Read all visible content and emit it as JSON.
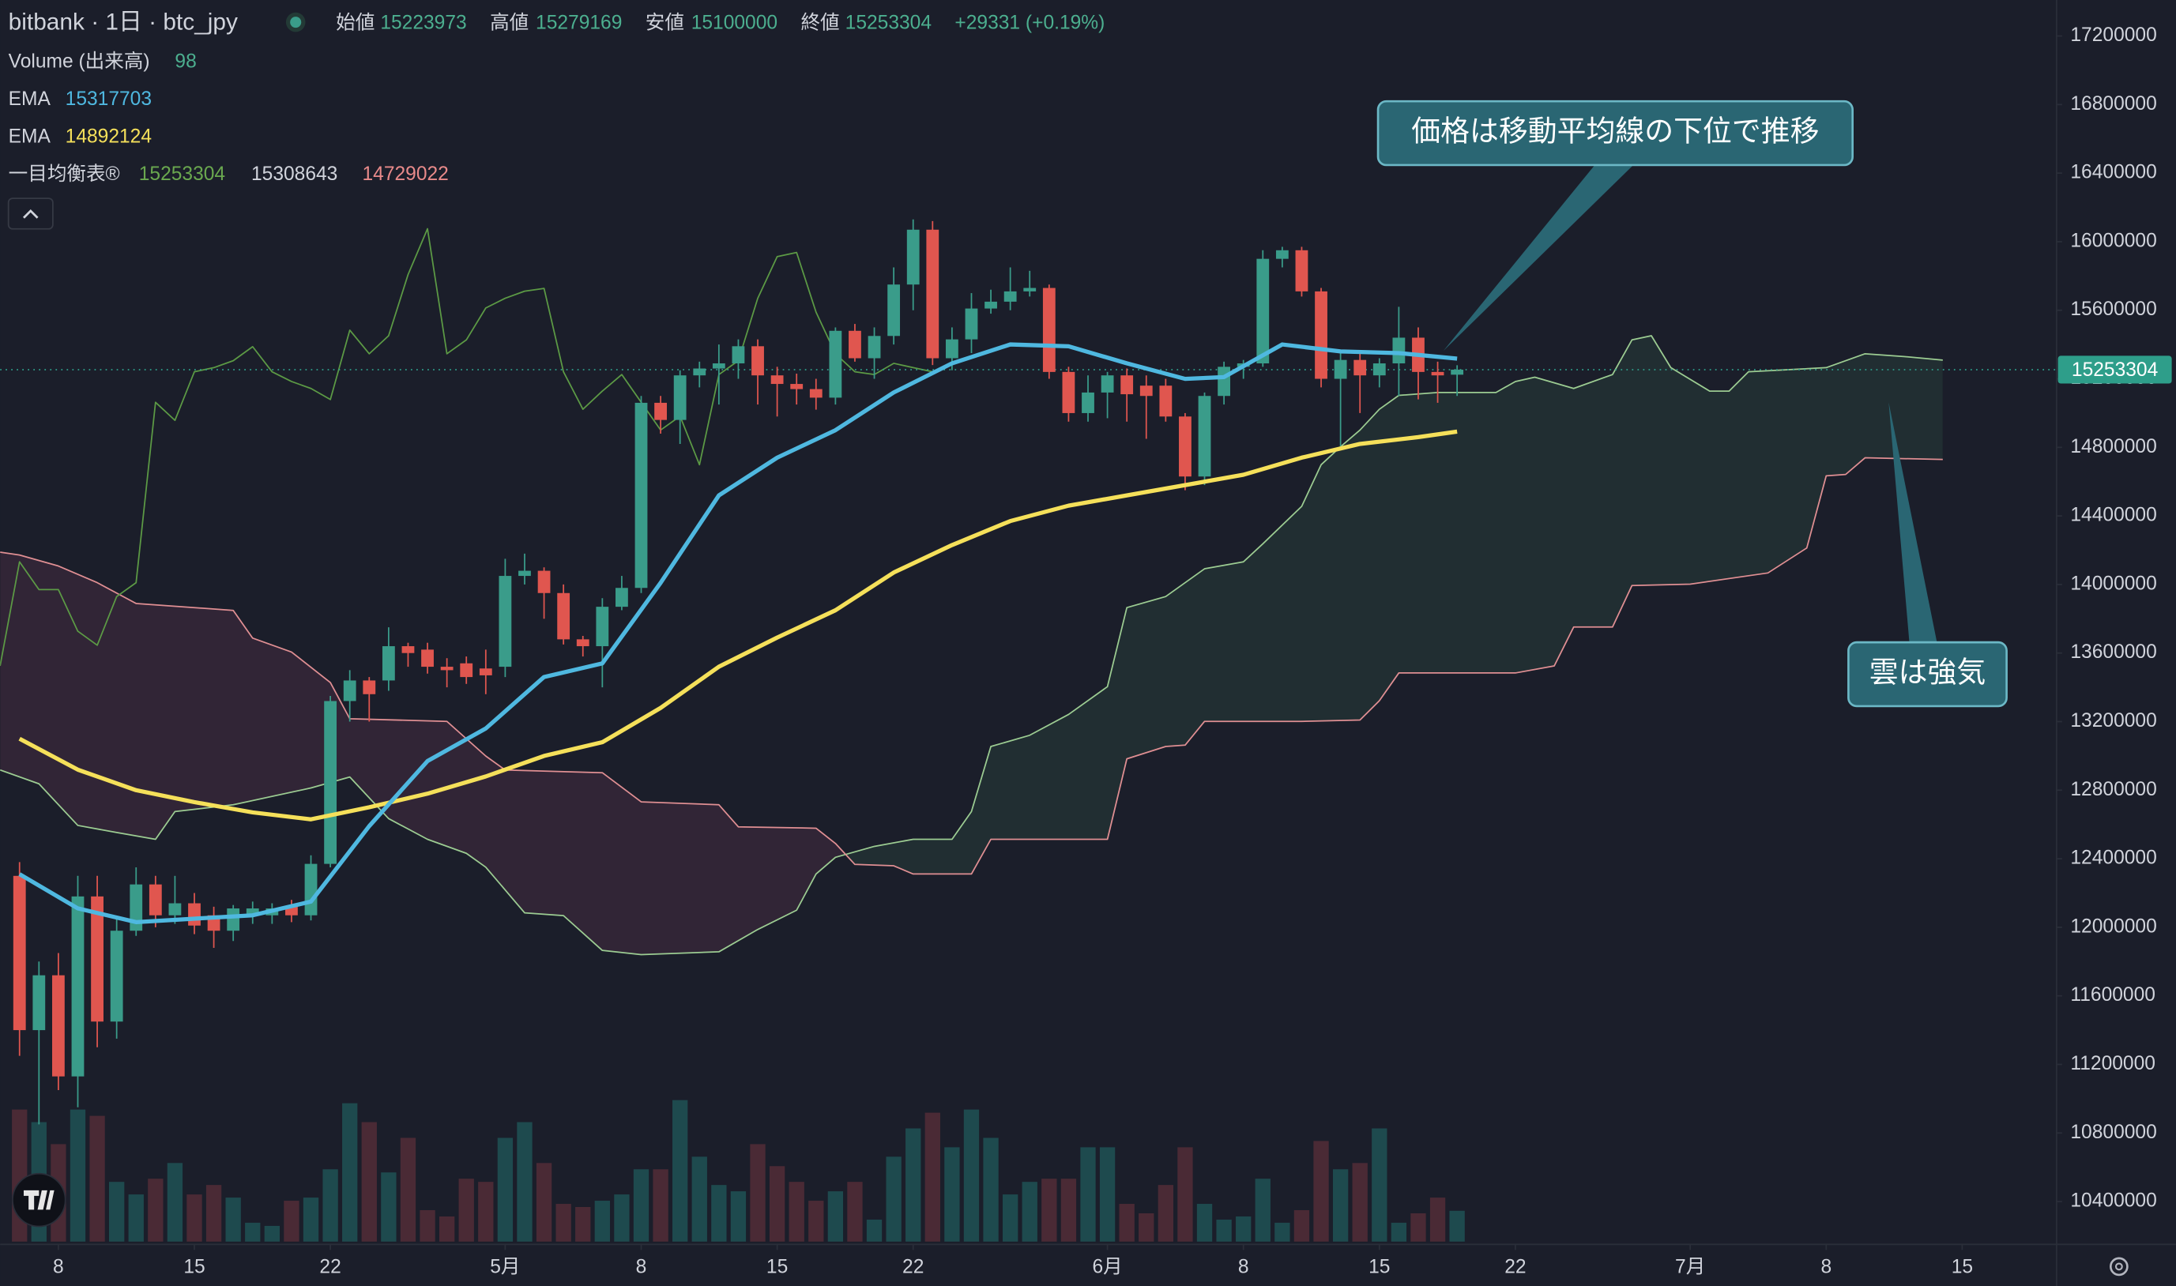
{
  "chart_data": {
    "type": "candlestick",
    "title": "bitbank · 1日 · btc_jpy",
    "ohlc": [
      {
        "label": "始値",
        "value": 15223973
      },
      {
        "label": "高値",
        "value": 15279169
      },
      {
        "label": "安値",
        "value": 15100000
      },
      {
        "label": "終値",
        "value": 15253304
      }
    ],
    "change": "+29331 (+0.19%)",
    "value_color": "#4caf8f",
    "indicators": [
      {
        "name": "Volume (出来高)",
        "value": 98,
        "color": "#4caf8f"
      },
      {
        "name": "EMA",
        "value": 15317703,
        "color": "#4fb8e0"
      },
      {
        "name": "EMA",
        "value": 14892124,
        "color": "#f5e05a"
      },
      {
        "name": "一目均衡表®",
        "values": [
          15253304,
          15308643,
          14729022
        ],
        "colors": [
          "#6aa84f",
          "#d1d4dc",
          "#e88a8a"
        ]
      }
    ],
    "up_color": "#3a9c8a",
    "down_color": "#e0564f",
    "volume_up_color": "#1e4a4e",
    "volume_down_color": "#4a2a35",
    "x": [
      "04-06",
      "04-07",
      "04-08",
      "04-09",
      "04-10",
      "04-11",
      "04-12",
      "04-13",
      "04-14",
      "04-15",
      "04-16",
      "04-17",
      "04-18",
      "04-19",
      "04-20",
      "04-21",
      "04-22",
      "04-23",
      "04-24",
      "04-25",
      "04-26",
      "04-27",
      "04-28",
      "04-29",
      "04-30",
      "05-01",
      "05-02",
      "05-03",
      "05-04",
      "05-05",
      "05-06",
      "05-07",
      "05-08",
      "05-09",
      "05-10",
      "05-11",
      "05-12",
      "05-13",
      "05-14",
      "05-15",
      "05-16",
      "05-17",
      "05-18",
      "05-19",
      "05-20",
      "05-21",
      "05-22",
      "05-23",
      "05-24",
      "05-25",
      "05-26",
      "05-27",
      "05-28",
      "05-29",
      "05-30",
      "05-31",
      "06-01",
      "06-02",
      "06-03",
      "06-04",
      "06-05",
      "06-06",
      "06-07",
      "06-08",
      "06-09",
      "06-10",
      "06-11",
      "06-12",
      "06-13",
      "06-14",
      "06-15",
      "06-16",
      "06-17",
      "06-18",
      "06-19"
    ],
    "open": [
      12300000,
      11400000,
      11720000,
      11130000,
      12180000,
      11450000,
      11980000,
      12250000,
      12070000,
      12140000,
      12070000,
      11980000,
      12070000,
      12070000,
      12120000,
      12070000,
      12370000,
      13320000,
      13440000,
      13440000,
      13640000,
      13620000,
      13520000,
      13540000,
      13510000,
      13520000,
      14050000,
      14080000,
      13950000,
      13680000,
      13640000,
      13870000,
      13980000,
      15060000,
      14960000,
      15220000,
      15260000,
      15290000,
      15390000,
      15220000,
      15170000,
      15140000,
      15090000,
      15480000,
      15320000,
      15450000,
      15750000,
      16070000,
      15320000,
      15430000,
      15610000,
      15650000,
      15710000,
      15730000,
      15240000,
      15000000,
      15120000,
      15220000,
      15160000,
      15160000,
      14980000,
      14630000,
      15100000,
      15270000,
      15290000,
      15900000,
      15950000,
      15710000,
      15200000,
      15310000,
      15220000,
      15290000,
      15440000,
      15240000,
      15223973
    ],
    "high": [
      12380000,
      11800000,
      11850000,
      12300000,
      12300000,
      12050000,
      12350000,
      12300000,
      12300000,
      12200000,
      12120000,
      12130000,
      12150000,
      12140000,
      12160000,
      12420000,
      13350000,
      13500000,
      13460000,
      13750000,
      13660000,
      13660000,
      13570000,
      13580000,
      13620000,
      14150000,
      14180000,
      14100000,
      14000000,
      13700000,
      13920000,
      14050000,
      15100000,
      15100000,
      15250000,
      15300000,
      15400000,
      15430000,
      15430000,
      15270000,
      15230000,
      15200000,
      15500000,
      15520000,
      15500000,
      15850000,
      16130000,
      16120000,
      15500000,
      15700000,
      15720000,
      15850000,
      15830000,
      15750000,
      15270000,
      15220000,
      15240000,
      15260000,
      15220000,
      15200000,
      15000000,
      15120000,
      15300000,
      15310000,
      15950000,
      15970000,
      15970000,
      15730000,
      15350000,
      15360000,
      15320000,
      15620000,
      15500000,
      15300000,
      15279169
    ],
    "low": [
      11250000,
      10850000,
      11050000,
      10950000,
      11300000,
      11350000,
      11950000,
      12000000,
      12020000,
      11960000,
      11880000,
      11920000,
      12020000,
      12020000,
      12030000,
      12040000,
      12350000,
      13200000,
      13200000,
      13380000,
      13520000,
      13480000,
      13400000,
      13420000,
      13360000,
      13460000,
      14000000,
      13800000,
      13650000,
      13580000,
      13400000,
      13850000,
      13950000,
      14880000,
      14820000,
      15150000,
      15050000,
      15200000,
      15050000,
      14980000,
      15050000,
      15020000,
      15050000,
      15300000,
      15200000,
      15400000,
      15600000,
      15280000,
      15250000,
      15350000,
      15580000,
      15600000,
      15680000,
      15200000,
      14950000,
      14950000,
      14970000,
      14950000,
      14850000,
      14950000,
      14550000,
      14580000,
      15050000,
      15200000,
      15270000,
      15850000,
      15680000,
      15150000,
      14800000,
      15000000,
      15150000,
      15100000,
      15080000,
      15060000,
      15100000
    ],
    "close": [
      11400000,
      11720000,
      11130000,
      12180000,
      11450000,
      11980000,
      12250000,
      12070000,
      12140000,
      12010000,
      11980000,
      12110000,
      12110000,
      12110000,
      12070000,
      12370000,
      13320000,
      13440000,
      13360000,
      13640000,
      13600000,
      13520000,
      13500000,
      13460000,
      13470000,
      14050000,
      14080000,
      13950000,
      13680000,
      13640000,
      13870000,
      13980000,
      15060000,
      14960000,
      15220000,
      15260000,
      15290000,
      15390000,
      15220000,
      15170000,
      15140000,
      15090000,
      15480000,
      15320000,
      15450000,
      15750000,
      16070000,
      15320000,
      15430000,
      15610000,
      15650000,
      15710000,
      15730000,
      15240000,
      15000000,
      15120000,
      15220000,
      15110000,
      15100000,
      14980000,
      14630000,
      15100000,
      15270000,
      15290000,
      15900000,
      15950000,
      15710000,
      15200000,
      15310000,
      15220000,
      15290000,
      15440000,
      15240000,
      15220000,
      15253304
    ],
    "volume": [
      420,
      380,
      310,
      420,
      400,
      190,
      150,
      200,
      250,
      150,
      180,
      140,
      60,
      50,
      130,
      140,
      230,
      440,
      380,
      220,
      330,
      100,
      80,
      200,
      190,
      330,
      380,
      250,
      120,
      110,
      130,
      150,
      230,
      230,
      450,
      270,
      180,
      160,
      310,
      240,
      190,
      130,
      160,
      190,
      70,
      270,
      360,
      410,
      300,
      420,
      330,
      150,
      190,
      200,
      200,
      300,
      300,
      120,
      90,
      180,
      300,
      120,
      70,
      80,
      200,
      60,
      100,
      320,
      230,
      250,
      360,
      60,
      90,
      140,
      98
    ],
    "lines": [
      {
        "color": "#4fb8e0",
        "width": 3,
        "x": [
          "04-06",
          "04-09",
          "04-12",
          "04-15",
          "04-18",
          "04-21",
          "04-24",
          "04-27",
          "04-30",
          "05-03",
          "05-06",
          "05-09",
          "05-12",
          "05-15",
          "05-18",
          "05-21",
          "05-24",
          "05-27",
          "05-30",
          "06-02",
          "06-05",
          "06-07",
          "06-10",
          "06-13",
          "06-16",
          "06-19"
        ],
        "values": [
          12310000,
          12110000,
          12030000,
          12050000,
          12070000,
          12150000,
          12590000,
          12970000,
          13160000,
          13460000,
          13540000,
          14010000,
          14520000,
          14740000,
          14900000,
          15120000,
          15290000,
          15400000,
          15390000,
          15290000,
          15200000,
          15210000,
          15400000,
          15360000,
          15350000,
          15317703
        ]
      },
      {
        "color": "#f5e05a",
        "width": 3,
        "x": [
          "04-06",
          "04-09",
          "04-12",
          "04-15",
          "04-18",
          "04-21",
          "04-24",
          "04-27",
          "04-30",
          "05-03",
          "05-06",
          "05-09",
          "05-12",
          "05-15",
          "05-18",
          "05-21",
          "05-24",
          "05-27",
          "05-30",
          "06-02",
          "06-05",
          "06-08",
          "06-11",
          "06-14",
          "06-17",
          "06-19"
        ],
        "values": [
          13100000,
          12920000,
          12800000,
          12730000,
          12670000,
          12630000,
          12700000,
          12780000,
          12880000,
          13000000,
          13080000,
          13280000,
          13520000,
          13690000,
          13850000,
          14070000,
          14230000,
          14370000,
          14460000,
          14520000,
          14580000,
          14640000,
          14740000,
          14820000,
          14860000,
          14892124
        ]
      },
      {
        "color": "#5c9a45",
        "width": 1,
        "x": [
          "04-05",
          "04-06",
          "04-07",
          "04-08",
          "04-09",
          "04-10",
          "04-11",
          "04-12",
          "04-13",
          "04-14",
          "04-15",
          "04-16",
          "04-17",
          "04-18",
          "04-19",
          "04-20",
          "04-21",
          "04-22",
          "04-23",
          "04-24",
          "04-25",
          "04-26",
          "04-27",
          "04-28",
          "04-29",
          "04-30",
          "05-01",
          "05-02",
          "05-03",
          "05-04",
          "05-05",
          "05-06",
          "05-07",
          "05-08",
          "05-09",
          "05-10",
          "05-11",
          "05-12",
          "05-13",
          "05-14",
          "05-15",
          "05-16",
          "05-17",
          "05-18",
          "05-19",
          "05-20",
          "05-21",
          "05-22",
          "05-23"
        ],
        "values": [
          13525000,
          14132000,
          13970000,
          13970000,
          13727000,
          13646000,
          13930000,
          14011000,
          15063000,
          14958000,
          15241000,
          15265000,
          15306000,
          15387000,
          15241000,
          15184000,
          15144000,
          15079000,
          15484000,
          15346000,
          15451000,
          15808000,
          16075000,
          15346000,
          15427000,
          15613000,
          15670000,
          15711000,
          15727000,
          15241000,
          15022000,
          15128000,
          15225000,
          15063000,
          14901000,
          14982000,
          14699000,
          15225000,
          15306000,
          15670000,
          15913000,
          15937000,
          15589000,
          15346000,
          15241000,
          15225000,
          15290000,
          15265000,
          15241000
        ]
      }
    ],
    "cloud": {
      "bull_color": "rgba(70,130,95,0.16)",
      "bear_color": "rgba(150,70,110,0.18)",
      "span_a": {
        "color": "#9ccc92",
        "x": [
          "04-05",
          "04-07",
          "04-09",
          "04-11",
          "04-13",
          "04-14",
          "04-17",
          "04-21",
          "04-23",
          "04-25",
          "04-27",
          "04-29",
          "04-30",
          "05-02",
          "05-04",
          "05-06",
          "05-08",
          "05-12",
          "05-14",
          "05-16",
          "05-17",
          "05-18",
          "05-20",
          "05-22",
          "05-24",
          "05-25",
          "05-26",
          "05-28",
          "05-30",
          "06-01",
          "06-02",
          "06-04",
          "06-06",
          "06-08",
          "06-09",
          "06-11",
          "06-12",
          "06-13",
          "06-14",
          "06-15",
          "06-16",
          "06-18",
          "06-21",
          "06-22",
          "06-23",
          "06-25",
          "06-27",
          "06-28",
          "06-29",
          "06-30",
          "07-02",
          "07-03",
          "07-04",
          "07-08",
          "07-10",
          "07-12",
          "07-14"
        ],
        "values": [
          12918000,
          12837000,
          12594000,
          12553000,
          12513000,
          12675000,
          12715000,
          12813000,
          12877000,
          12634000,
          12513000,
          12432000,
          12351000,
          12084000,
          12068000,
          11865000,
          11841000,
          11857000,
          11987000,
          12100000,
          12311000,
          12408000,
          12472000,
          12513000,
          12513000,
          12675000,
          13055000,
          13120000,
          13242000,
          13404000,
          13865000,
          13930000,
          14092000,
          14132000,
          14237000,
          14456000,
          14699000,
          14804000,
          14901000,
          15022000,
          15103000,
          15120000,
          15120000,
          15184000,
          15209000,
          15144000,
          15225000,
          15427000,
          15451000,
          15265000,
          15128000,
          15128000,
          15241000,
          15265000,
          15346000,
          15330000,
          15308643
        ]
      },
      "span_b": {
        "color": "#e08f93",
        "x": [
          "04-05",
          "04-06",
          "04-08",
          "04-10",
          "04-12",
          "04-14",
          "04-17",
          "04-18",
          "04-20",
          "04-22",
          "04-23",
          "04-28",
          "04-30",
          "05-01",
          "05-06",
          "05-08",
          "05-12",
          "05-13",
          "05-17",
          "05-18",
          "05-19",
          "05-21",
          "05-22",
          "05-25",
          "05-26",
          "06-01",
          "06-02",
          "06-04",
          "06-05",
          "06-06",
          "06-11",
          "06-14",
          "06-15",
          "06-16",
          "06-22",
          "06-24",
          "06-25",
          "06-27",
          "06-28",
          "07-01",
          "07-05",
          "07-07",
          "07-08",
          "07-09",
          "07-10",
          "07-14"
        ],
        "values": [
          14189000,
          14172000,
          14108000,
          14011000,
          13889000,
          13873000,
          13849000,
          13687000,
          13606000,
          13428000,
          13217000,
          13201000,
          12999000,
          12918000,
          12902000,
          12732000,
          12715000,
          12586000,
          12578000,
          12489000,
          12367000,
          12359000,
          12311000,
          12311000,
          12513000,
          12513000,
          12983000,
          13055000,
          13063000,
          13201000,
          13201000,
          13209000,
          13322000,
          13484000,
          13484000,
          13525000,
          13752000,
          13752000,
          13994000,
          14002000,
          14067000,
          14213000,
          14634000,
          14642000,
          14739000,
          14729022
        ]
      }
    },
    "price_line": {
      "value": 15253304,
      "color": "#2e9e8a"
    },
    "annotations": [
      {
        "text": "価格は移動平均線の下位で推移"
      },
      {
        "text": "雲は強気"
      }
    ],
    "xlim": [
      "04-05",
      "07-20"
    ],
    "xticks": [
      {
        "value": "04-08",
        "label": "8"
      },
      {
        "value": "04-15",
        "label": "15"
      },
      {
        "value": "04-22",
        "label": "22"
      },
      {
        "value": "05-01",
        "label": "5月"
      },
      {
        "value": "05-08",
        "label": "8"
      },
      {
        "value": "05-15",
        "label": "15"
      },
      {
        "value": "05-22",
        "label": "22"
      },
      {
        "value": "06-01",
        "label": "6月"
      },
      {
        "value": "06-08",
        "label": "8"
      },
      {
        "value": "06-15",
        "label": "15"
      },
      {
        "value": "06-22",
        "label": "22"
      },
      {
        "value": "07-01",
        "label": "7月"
      },
      {
        "value": "07-08",
        "label": "8"
      },
      {
        "value": "07-15",
        "label": "15"
      }
    ],
    "ylim": [
      10150000,
      17410000
    ],
    "yticks": [
      17200000,
      16800000,
      16400000,
      16000000,
      15600000,
      15200000,
      14800000,
      14400000,
      14000000,
      13600000,
      13200000,
      12800000,
      12400000,
      12000000,
      11600000,
      11200000,
      10800000,
      10400000
    ]
  }
}
